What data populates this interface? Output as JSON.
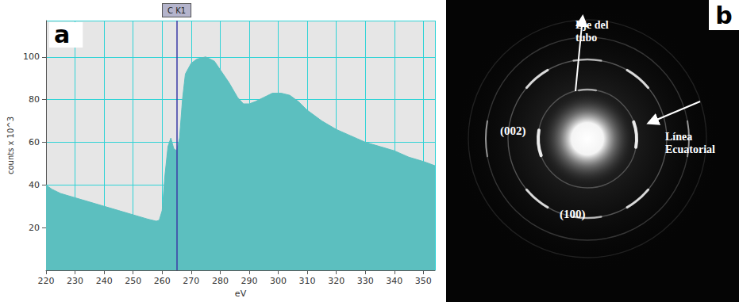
{
  "chart_data": {
    "type": "area",
    "x": [
      220,
      222,
      225,
      230,
      235,
      240,
      245,
      250,
      255,
      258,
      259,
      260,
      261,
      262,
      263,
      264,
      265,
      266,
      267,
      268,
      270,
      272,
      275,
      278,
      280,
      283,
      286,
      288,
      290,
      292,
      295,
      298,
      301,
      304,
      307,
      310,
      315,
      320,
      325,
      330,
      335,
      340,
      345,
      350,
      354
    ],
    "values": [
      40,
      38,
      36,
      34,
      32,
      30,
      28,
      26,
      24,
      23,
      23.5,
      28,
      45,
      58,
      62,
      57,
      56,
      62,
      80,
      92,
      97,
      99,
      100,
      98,
      94,
      88,
      81,
      78,
      78,
      79,
      81,
      83,
      83,
      82,
      79,
      75,
      70,
      66,
      63,
      60,
      58,
      56,
      53,
      51,
      49
    ],
    "color": "#5cbfbf",
    "xlim": [
      220,
      354
    ],
    "xticks": [
      220,
      230,
      240,
      250,
      260,
      270,
      280,
      290,
      300,
      310,
      320,
      330,
      340,
      350
    ],
    "ylim": [
      0,
      117
    ],
    "yticks": [
      20,
      40,
      60,
      80,
      100
    ],
    "grid": true,
    "x_label": "eV",
    "y_label": "counts x 10^3",
    "annotations": [
      {
        "text": "a"
      },
      {
        "text": "C K1",
        "x": 265
      }
    ]
  },
  "diffraction": {
    "panel_label": "b",
    "labels": [
      {
        "text": [
          "Eje del",
          "tubo"
        ]
      },
      {
        "text": [
          "Línea",
          "Ecuatorial"
        ]
      },
      {
        "text": [
          "(002)"
        ]
      },
      {
        "text": [
          "(100)"
        ]
      }
    ]
  }
}
